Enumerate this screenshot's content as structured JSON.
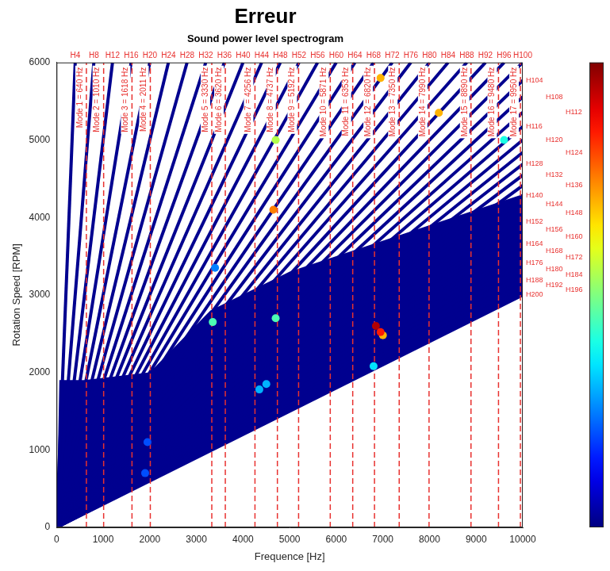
{
  "chart_data": {
    "type": "scatter",
    "title": "Erreur",
    "subtitle": "Sound power level spectrogram",
    "x_label": "Frequence [Hz]",
    "y_label": "Rotation Speed [RPM]",
    "xlim": [
      0,
      10000
    ],
    "xticks": [
      0,
      1000,
      2000,
      3000,
      4000,
      5000,
      6000,
      7000,
      8000,
      9000,
      10000
    ],
    "ylim": [
      0,
      6000
    ],
    "yticks": [
      0,
      1000,
      2000,
      3000,
      4000,
      5000,
      6000
    ],
    "grid": false,
    "color": "#00008f",
    "filled_area": {
      "x": [
        0,
        10000,
        10000,
        7000,
        5000,
        3300,
        2000,
        600,
        60
      ],
      "y": [
        0,
        3000,
        4300,
        3700,
        3300,
        2800,
        2000,
        1900,
        1900
      ]
    },
    "harmonics": [
      {
        "name": "H4",
        "x": [
          0,
          400
        ],
        "y": [
          0,
          6000
        ]
      },
      {
        "name": "H8",
        "x": [
          0,
          800
        ],
        "y": [
          0,
          6000
        ]
      },
      {
        "name": "H12",
        "x": [
          0,
          1200
        ],
        "y": [
          0,
          6000
        ]
      },
      {
        "name": "H16",
        "x": [
          0,
          1600
        ],
        "y": [
          0,
          6000
        ]
      },
      {
        "name": "H20",
        "x": [
          0,
          2000
        ],
        "y": [
          0,
          6000
        ]
      },
      {
        "name": "H24",
        "x": [
          0,
          2400
        ],
        "y": [
          0,
          6000
        ]
      },
      {
        "name": "H28",
        "x": [
          0,
          2800
        ],
        "y": [
          0,
          6000
        ]
      },
      {
        "name": "H32",
        "x": [
          0,
          3200
        ],
        "y": [
          0,
          6000
        ]
      },
      {
        "name": "H36",
        "x": [
          0,
          3600
        ],
        "y": [
          0,
          6000
        ]
      },
      {
        "name": "H40",
        "x": [
          0,
          4000
        ],
        "y": [
          0,
          6000
        ]
      },
      {
        "name": "H44",
        "x": [
          0,
          4400
        ],
        "y": [
          0,
          6000
        ]
      },
      {
        "name": "H48",
        "x": [
          0,
          4800
        ],
        "y": [
          0,
          6000
        ]
      },
      {
        "name": "H52",
        "x": [
          0,
          5200
        ],
        "y": [
          0,
          6000
        ]
      },
      {
        "name": "H56",
        "x": [
          0,
          5600
        ],
        "y": [
          0,
          6000
        ]
      },
      {
        "name": "H60",
        "x": [
          0,
          6000
        ],
        "y": [
          0,
          6000
        ]
      },
      {
        "name": "H64",
        "x": [
          0,
          6400
        ],
        "y": [
          0,
          6000
        ]
      },
      {
        "name": "H68",
        "x": [
          0,
          6800
        ],
        "y": [
          0,
          6000
        ]
      },
      {
        "name": "H72",
        "x": [
          0,
          7200
        ],
        "y": [
          0,
          6000
        ]
      },
      {
        "name": "H76",
        "x": [
          0,
          7600
        ],
        "y": [
          0,
          6000
        ]
      },
      {
        "name": "H80",
        "x": [
          0,
          8000
        ],
        "y": [
          0,
          6000
        ]
      },
      {
        "name": "H84",
        "x": [
          0,
          8400
        ],
        "y": [
          0,
          6000
        ]
      },
      {
        "name": "H88",
        "x": [
          0,
          8800
        ],
        "y": [
          0,
          6000
        ]
      },
      {
        "name": "H92",
        "x": [
          0,
          9200
        ],
        "y": [
          0,
          6000
        ]
      },
      {
        "name": "H96",
        "x": [
          0,
          9600
        ],
        "y": [
          0,
          6000
        ]
      },
      {
        "name": "H100",
        "x": [
          0,
          10000
        ],
        "y": [
          0,
          6000
        ]
      },
      {
        "name": "H104",
        "x": [
          0,
          10000
        ],
        "y": [
          0,
          5769
        ]
      },
      {
        "name": "H108",
        "x": [
          0,
          10000
        ],
        "y": [
          0,
          5556
        ]
      },
      {
        "name": "H112",
        "x": [
          0,
          10000
        ],
        "y": [
          0,
          5357
        ]
      },
      {
        "name": "H116",
        "x": [
          0,
          10000
        ],
        "y": [
          0,
          5172
        ]
      },
      {
        "name": "H120",
        "x": [
          0,
          10000
        ],
        "y": [
          0,
          5000
        ]
      },
      {
        "name": "H124",
        "x": [
          0,
          10000
        ],
        "y": [
          0,
          4839
        ]
      },
      {
        "name": "H128",
        "x": [
          0,
          10000
        ],
        "y": [
          0,
          4688
        ]
      },
      {
        "name": "H132",
        "x": [
          0,
          10000
        ],
        "y": [
          0,
          4545
        ]
      },
      {
        "name": "H136",
        "x": [
          0,
          10000
        ],
        "y": [
          0,
          4412
        ]
      },
      {
        "name": "H140",
        "x": [
          0,
          10000
        ],
        "y": [
          0,
          4286
        ]
      },
      {
        "name": "H144",
        "x": [
          0,
          10000
        ],
        "y": [
          0,
          4167
        ]
      },
      {
        "name": "H148",
        "x": [
          0,
          10000
        ],
        "y": [
          0,
          4054
        ]
      },
      {
        "name": "H152",
        "x": [
          0,
          10000
        ],
        "y": [
          0,
          3947
        ]
      },
      {
        "name": "H156",
        "x": [
          0,
          10000
        ],
        "y": [
          0,
          3846
        ]
      },
      {
        "name": "H160",
        "x": [
          0,
          10000
        ],
        "y": [
          0,
          3750
        ]
      },
      {
        "name": "H164",
        "x": [
          0,
          10000
        ],
        "y": [
          0,
          3659
        ]
      },
      {
        "name": "H168",
        "x": [
          0,
          10000
        ],
        "y": [
          0,
          3571
        ]
      },
      {
        "name": "H172",
        "x": [
          0,
          10000
        ],
        "y": [
          0,
          3488
        ]
      },
      {
        "name": "H176",
        "x": [
          0,
          10000
        ],
        "y": [
          0,
          3409
        ]
      },
      {
        "name": "H180",
        "x": [
          0,
          10000
        ],
        "y": [
          0,
          3333
        ]
      },
      {
        "name": "H184",
        "x": [
          0,
          10000
        ],
        "y": [
          0,
          3261
        ]
      },
      {
        "name": "H188",
        "x": [
          0,
          10000
        ],
        "y": [
          0,
          3191
        ]
      },
      {
        "name": "H192",
        "x": [
          0,
          10000
        ],
        "y": [
          0,
          3125
        ]
      },
      {
        "name": "H196",
        "x": [
          0,
          10000
        ],
        "y": [
          0,
          3061
        ]
      },
      {
        "name": "H200",
        "x": [
          0,
          10000
        ],
        "y": [
          0,
          3000
        ]
      }
    ],
    "modes": {
      "color": "#e8312f",
      "line_style": "dashed",
      "x": [
        640,
        1010,
        1618,
        2011,
        3330,
        3620,
        4256,
        4737,
        5192,
        5871,
        6353,
        6820,
        7350,
        7990,
        8890,
        9480,
        9950
      ],
      "labels": [
        "Mode 1 = 640 Hz",
        "Mode 2 = 1010 Hz",
        "Mode 3 = 1618 Hz",
        "Mode 4 = 2011 Hz",
        "Mode 5 = 3330 Hz",
        "Mode 6 = 3620 Hz",
        "Mode 7 = 4256 Hz",
        "Mode 8 = 4737 Hz",
        "Mode 9 = 5192 Hz",
        "Mode 10 = 5871 Hz",
        "Mode 11 = 6353 Hz",
        "Mode 12 = 6820 Hz",
        "Mode 13 = 7350 Hz",
        "Mode 14 = 7990 Hz",
        "Mode 15 = 8890 Hz",
        "Mode 16 = 9480 Hz",
        "Mode 17 = 9950 Hz"
      ]
    },
    "hotspots": {
      "x": [
        3350,
        4700,
        4650,
        4700,
        6850,
        7000,
        6950,
        6800,
        4500,
        4350,
        8200,
        6950,
        9600,
        1950,
        1900,
        3400
      ],
      "y": [
        2650,
        2700,
        4100,
        5000,
        2600,
        2480,
        5800,
        2080,
        1850,
        1780,
        5350,
        2520,
        5000,
        1100,
        700,
        3350
      ],
      "level": [
        45,
        45,
        75,
        55,
        95,
        70,
        70,
        35,
        30,
        30,
        70,
        85,
        40,
        20,
        20,
        25
      ]
    },
    "colorbar": {
      "range": [
        0,
        100
      ]
    }
  }
}
